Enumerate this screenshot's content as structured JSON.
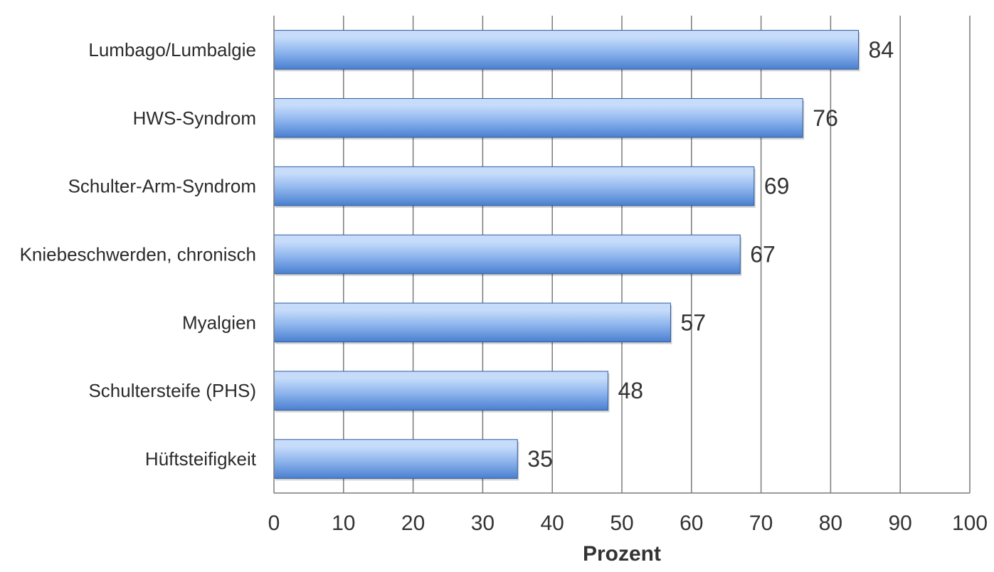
{
  "chart_data": {
    "type": "bar",
    "orientation": "horizontal",
    "categories": [
      "Lumbago/Lumbalgie",
      "HWS-Syndrom",
      "Schulter-Arm-Syndrom",
      "Kniebeschwerden, chronisch",
      "Myalgien",
      "Schultersteife (PHS)",
      "Hüftsteifigkeit"
    ],
    "values": [
      84,
      76,
      69,
      67,
      57,
      48,
      35
    ],
    "xlabel": "Prozent",
    "ylabel": "",
    "xlim": [
      0,
      100
    ],
    "x_ticks": [
      0,
      10,
      20,
      30,
      40,
      50,
      60,
      70,
      80,
      90,
      100
    ],
    "grid": "vertical",
    "legend": "none",
    "data_labels": true,
    "colors": {
      "bar_light": "#c6dcfa",
      "bar_mid": "#8fb6ee",
      "bar_dark": "#4a7fd0",
      "bar_edge": "#2f5c9e",
      "grid": "#7a7a7a"
    }
  }
}
